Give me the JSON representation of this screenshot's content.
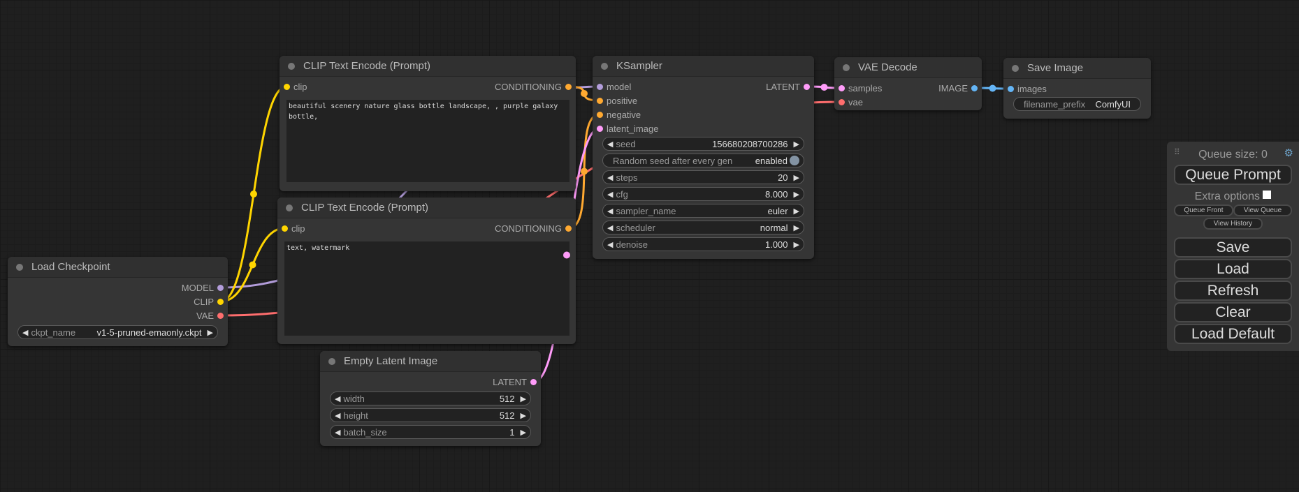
{
  "colors": {
    "MODEL": "#b39ddb",
    "CLIP": "#ffd500",
    "VAE": "#ff6e6e",
    "CONDITIONING": "#ffa931",
    "LATENT": "#ff9cf9",
    "IMAGE": "#64b5f6"
  },
  "nodes": {
    "clip_pos": {
      "title": "CLIP Text Encode (Prompt)",
      "input": "clip",
      "output": "CONDITIONING",
      "text": "beautiful scenery nature glass bottle landscape, , purple galaxy bottle,"
    },
    "clip_neg": {
      "title": "CLIP Text Encode (Prompt)",
      "input": "clip",
      "output": "CONDITIONING",
      "text": "text, watermark"
    },
    "checkpoint": {
      "title": "Load Checkpoint",
      "outputs": [
        "MODEL",
        "CLIP",
        "VAE"
      ],
      "ckpt_label": "ckpt_name",
      "ckpt_value": "v1-5-pruned-emaonly.ckpt"
    },
    "latent": {
      "title": "Empty Latent Image",
      "output": "LATENT",
      "widgets": [
        {
          "label": "width",
          "value": "512"
        },
        {
          "label": "height",
          "value": "512"
        },
        {
          "label": "batch_size",
          "value": "1"
        }
      ]
    },
    "ksampler": {
      "title": "KSampler",
      "inputs": [
        "model",
        "positive",
        "negative",
        "latent_image"
      ],
      "output": "LATENT",
      "seed": {
        "label": "seed",
        "value": "156680208700286"
      },
      "random_seed": {
        "label": "Random seed after every gen",
        "value": "enabled"
      },
      "widgets": [
        {
          "label": "steps",
          "value": "20"
        },
        {
          "label": "cfg",
          "value": "8.000"
        },
        {
          "label": "sampler_name",
          "value": "euler"
        },
        {
          "label": "scheduler",
          "value": "normal"
        },
        {
          "label": "denoise",
          "value": "1.000"
        }
      ]
    },
    "vae_decode": {
      "title": "VAE Decode",
      "inputs": [
        "samples",
        "vae"
      ],
      "output": "IMAGE"
    },
    "save": {
      "title": "Save Image",
      "input": "images",
      "prefix_label": "filename_prefix",
      "prefix_value": "ComfyUI"
    }
  },
  "links": [
    {
      "from": "checkpoint.MODEL",
      "to": "ksampler.model",
      "type": "MODEL"
    },
    {
      "from": "checkpoint.CLIP",
      "to": "clip_pos.clip",
      "type": "CLIP"
    },
    {
      "from": "checkpoint.CLIP",
      "to": "clip_neg.clip",
      "type": "CLIP"
    },
    {
      "from": "checkpoint.VAE",
      "to": "vae_decode.vae",
      "type": "VAE"
    },
    {
      "from": "clip_pos.CONDITIONING",
      "to": "ksampler.positive",
      "type": "CONDITIONING"
    },
    {
      "from": "clip_neg.CONDITIONING",
      "to": "ksampler.negative",
      "type": "CONDITIONING"
    },
    {
      "from": "latent.LATENT",
      "to": "ksampler.latent_image",
      "type": "LATENT"
    },
    {
      "from": "ksampler.LATENT",
      "to": "vae_decode.samples",
      "type": "LATENT"
    },
    {
      "from": "vae_decode.IMAGE",
      "to": "save.images",
      "type": "IMAGE"
    }
  ],
  "panel": {
    "queue_size": "Queue size: 0",
    "queue_prompt": "Queue Prompt",
    "extra_options": "Extra options",
    "queue_front": "Queue Front",
    "view_queue": "View Queue",
    "view_history": "View History",
    "save": "Save",
    "load": "Load",
    "refresh": "Refresh",
    "clear": "Clear",
    "load_default": "Load Default"
  }
}
